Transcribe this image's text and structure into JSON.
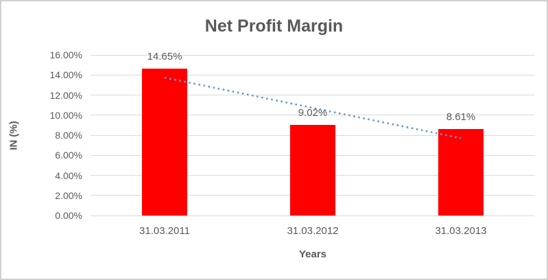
{
  "chart_data": {
    "type": "bar",
    "title": "Net Profit Margin",
    "xlabel": "Years",
    "ylabel": "IN (%)",
    "categories": [
      "31.03.2011",
      "31.03.2012",
      "31.03.2013"
    ],
    "values": [
      14.65,
      9.02,
      8.61
    ],
    "data_labels": [
      "14.65%",
      "9.02%",
      "8.61%"
    ],
    "ylim": [
      0,
      16
    ],
    "ytick_step": 2,
    "ytick_labels": [
      "0.00%",
      "2.00%",
      "4.00%",
      "6.00%",
      "8.00%",
      "10.00%",
      "12.00%",
      "14.00%",
      "16.00%"
    ],
    "grid": true,
    "legend": false,
    "bar_color": "#ff0000",
    "trendline": {
      "style": "dotted",
      "color": "#5b9bd5",
      "start_value": 13.74,
      "end_value": 7.7
    },
    "colors": {
      "title_text": "#595959",
      "tick_text": "#595959",
      "gridline": "#d9d9d9",
      "frame_border": "#d0cece"
    }
  }
}
